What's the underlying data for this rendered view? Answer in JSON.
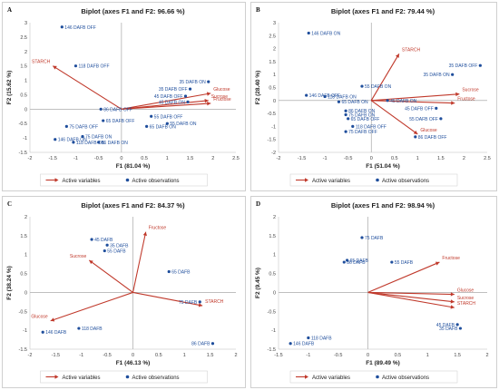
{
  "colors": {
    "variable": "#c0392b",
    "observation": "#1f4e9c",
    "axis": "#999999"
  },
  "legend": {
    "variables": "Active variables",
    "observations": "Active observations"
  },
  "chart_data": [
    {
      "panel": "A",
      "type": "scatter",
      "title": "Biplot (axes F1 and F2: 96.66 %)",
      "xlabel": "F1 (81.04 %)",
      "ylabel": "F2 (15.62 %)",
      "xlim": [
        -2,
        2.5
      ],
      "ylim": [
        -1.5,
        3
      ],
      "xticks": [
        "-2",
        "-1.5",
        "-1",
        "-0.5",
        "0",
        "0.5",
        "1",
        "1.5",
        "2",
        "2.5"
      ],
      "yticks": [
        "-1.5",
        "-1",
        "-0.5",
        "0",
        "0.5",
        "1",
        "1.5",
        "2",
        "2.5",
        "3"
      ],
      "variables": [
        {
          "label": "STARCH",
          "x": -1.5,
          "y": 1.5
        },
        {
          "label": "Glucose",
          "x": 1.95,
          "y": 0.55
        },
        {
          "label": "Sucrose",
          "x": 1.9,
          "y": 0.3
        },
        {
          "label": "Fructose",
          "x": 1.95,
          "y": 0.2
        }
      ],
      "observations": [
        {
          "label": "146 DAFB OFF",
          "x": -1.3,
          "y": 2.85
        },
        {
          "label": "118 DAFB OFF",
          "x": -1.0,
          "y": 1.5
        },
        {
          "label": "35 DAFB ON",
          "x": 1.9,
          "y": 0.95
        },
        {
          "label": "35 DAFB OFF",
          "x": 1.5,
          "y": 0.7
        },
        {
          "label": "45 DAFB OFF",
          "x": 1.4,
          "y": 0.45
        },
        {
          "label": "45 DAFB ON",
          "x": 1.45,
          "y": 0.25
        },
        {
          "label": "86 DAFB OFF",
          "x": -0.45,
          "y": 0.0
        },
        {
          "label": "55 DAFB OFF",
          "x": 0.65,
          "y": -0.25
        },
        {
          "label": "55 DAFB ON",
          "x": 1.0,
          "y": -0.5
        },
        {
          "label": "65 DAFB OFF",
          "x": -0.4,
          "y": -0.4
        },
        {
          "label": "65 DAFB ON",
          "x": 0.55,
          "y": -0.6
        },
        {
          "label": "75 DAFB OFF",
          "x": -1.2,
          "y": -0.6
        },
        {
          "label": "75 DAFB ON",
          "x": -0.85,
          "y": -0.95
        },
        {
          "label": "146 DAFB ON",
          "x": -1.45,
          "y": -1.05
        },
        {
          "label": "118 DAFB ON",
          "x": -1.05,
          "y": -1.15
        },
        {
          "label": "86 DAFB ON",
          "x": -0.5,
          "y": -1.15
        }
      ]
    },
    {
      "panel": "B",
      "type": "scatter",
      "title": "Biplot (axes F1 and F2: 79.44 %)",
      "xlabel": "F1 (51.04 %)",
      "ylabel": "F2 (28.40 %)",
      "xlim": [
        -2,
        2.5
      ],
      "ylim": [
        -2,
        3
      ],
      "xticks": [
        "-2",
        "-1.5",
        "-1",
        "-0.5",
        "0",
        "0.5",
        "1",
        "1.5",
        "2",
        "2.5"
      ],
      "yticks": [
        "-2",
        "-1.5",
        "-1",
        "-0.5",
        "0",
        "0.5",
        "1",
        "1.5",
        "2",
        "2.5",
        "3"
      ],
      "variables": [
        {
          "label": "STARCH",
          "x": 0.6,
          "y": 1.8
        },
        {
          "label": "Sucrose",
          "x": 1.9,
          "y": 0.25
        },
        {
          "label": "Fructose",
          "x": 1.8,
          "y": -0.1
        },
        {
          "label": "Glucose",
          "x": 1.0,
          "y": -1.3
        }
      ],
      "observations": [
        {
          "label": "146 DAFB ON",
          "x": -1.35,
          "y": 2.6
        },
        {
          "label": "35 DAFB OFF",
          "x": 2.35,
          "y": 1.35
        },
        {
          "label": "35 DAFB ON",
          "x": 1.75,
          "y": 1.0
        },
        {
          "label": "55 DAFB ON",
          "x": -0.2,
          "y": 0.55
        },
        {
          "label": "146 DAFB OFF",
          "x": -1.4,
          "y": 0.2
        },
        {
          "label": "118 DAFB ON",
          "x": -1.0,
          "y": 0.15
        },
        {
          "label": "45 DAFB ON",
          "x": 0.35,
          "y": 0.0
        },
        {
          "label": "65 DAFB ON",
          "x": -0.7,
          "y": -0.05
        },
        {
          "label": "86 DAFB ON",
          "x": -0.55,
          "y": -0.4
        },
        {
          "label": "75 DAFB ON",
          "x": -0.55,
          "y": -0.55
        },
        {
          "label": "65 DAFB OFF",
          "x": -0.5,
          "y": -0.7
        },
        {
          "label": "118 DAFB OFF",
          "x": -0.4,
          "y": -1.0
        },
        {
          "label": "75 DAFB OFF",
          "x": -0.55,
          "y": -1.2
        },
        {
          "label": "45 DAFB OFF",
          "x": 1.4,
          "y": -0.3
        },
        {
          "label": "55 DAFB OFF",
          "x": 1.5,
          "y": -0.7
        },
        {
          "label": "86 DAFB OFF",
          "x": 0.95,
          "y": -1.4
        }
      ]
    },
    {
      "panel": "C",
      "type": "scatter",
      "title": "Biplot (axes F1 and F2: 84.37 %)",
      "xlabel": "F1 (46.13 %)",
      "ylabel": "F2 (38.24 %)",
      "xlim": [
        -2,
        2
      ],
      "ylim": [
        -1.5,
        2
      ],
      "xticks": [
        "-2",
        "-1.5",
        "-1",
        "-0.5",
        "0",
        "0.5",
        "1",
        "1.5",
        "2"
      ],
      "yticks": [
        "-1.5",
        "-1",
        "-0.5",
        "0",
        "0.5",
        "1",
        "1.5",
        "2"
      ],
      "variables": [
        {
          "label": "Fructose",
          "x": 0.25,
          "y": 1.6
        },
        {
          "label": "Sucrose",
          "x": -0.85,
          "y": 0.85
        },
        {
          "label": "STARCH",
          "x": 1.35,
          "y": -0.35
        },
        {
          "label": "Glucose",
          "x": -1.6,
          "y": -0.75
        }
      ],
      "observations": [
        {
          "label": "45 DAFB",
          "x": -0.8,
          "y": 1.4
        },
        {
          "label": "35 DAFB",
          "x": -0.5,
          "y": 1.25
        },
        {
          "label": "55 DAFB",
          "x": -0.55,
          "y": 1.1
        },
        {
          "label": "65 DAFB",
          "x": 0.7,
          "y": 0.55
        },
        {
          "label": "75 DAFB",
          "x": 1.3,
          "y": -0.25
        },
        {
          "label": "86 DAFB",
          "x": 1.55,
          "y": -1.35
        },
        {
          "label": "118 DAFB",
          "x": -1.05,
          "y": -0.95
        },
        {
          "label": "146 DAFB",
          "x": -1.75,
          "y": -1.05
        }
      ]
    },
    {
      "panel": "D",
      "type": "scatter",
      "title": "Biplot (axes F1 and F2: 98.94 %)",
      "xlabel": "F1 (89.49 %)",
      "ylabel": "F2 (9.45 %)",
      "xlim": [
        -1.5,
        2
      ],
      "ylim": [
        -1.5,
        2
      ],
      "xticks": [
        "-1.5",
        "-1",
        "-0.5",
        "0",
        "0.5",
        "1",
        "1.5",
        "2"
      ],
      "yticks": [
        "-1.5",
        "-1",
        "-0.5",
        "0",
        "0.5",
        "1",
        "1.5",
        "2"
      ],
      "variables": [
        {
          "label": "Fructose",
          "x": 1.2,
          "y": 0.8
        },
        {
          "label": "Glucose",
          "x": 1.45,
          "y": -0.05
        },
        {
          "label": "Sucrose",
          "x": 1.45,
          "y": -0.25
        },
        {
          "label": "STARCH",
          "x": 1.45,
          "y": -0.4
        }
      ],
      "observations": [
        {
          "label": "75 DAFB",
          "x": -0.1,
          "y": 1.45
        },
        {
          "label": "65 DAFB",
          "x": -0.35,
          "y": 0.85
        },
        {
          "label": "86 DAFB",
          "x": -0.4,
          "y": 0.8
        },
        {
          "label": "55 DAFB",
          "x": 0.4,
          "y": 0.8
        },
        {
          "label": "45 DAFB",
          "x": 1.5,
          "y": -0.85
        },
        {
          "label": "35 DAFB",
          "x": 1.55,
          "y": -0.95
        },
        {
          "label": "118 DAFB",
          "x": -1.0,
          "y": -1.2
        },
        {
          "label": "146 DAFB",
          "x": -1.3,
          "y": -1.35
        }
      ]
    }
  ]
}
